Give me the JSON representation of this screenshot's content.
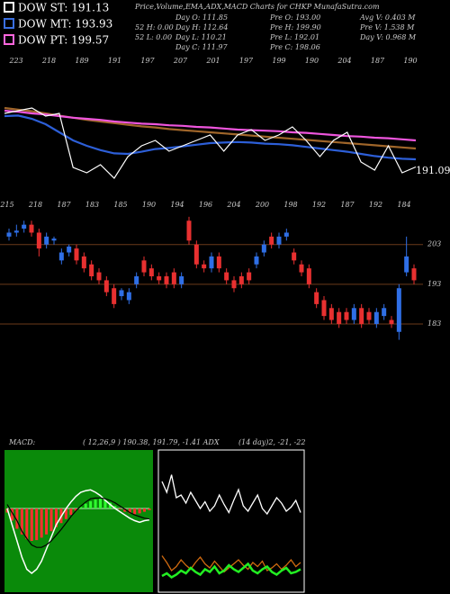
{
  "title": "Price,Volume,EMA,ADX,MACD Charts for CHKP MunafaSutra.com",
  "legend": [
    "DOW ST: 191.13",
    "DOW MT: 193.93",
    "DOW PT: 199.57"
  ],
  "legend_colors": [
    "#ffffff",
    "#3a6fe0",
    "#ff66dd"
  ],
  "stats": [
    [
      "52  H: 0.00",
      "52  L: 0.00"
    ],
    [
      "Day O: 111.85",
      "Day H: 112.64",
      "Day L: 110.21",
      "Day C: 111.97"
    ],
    [
      "Pre  O: 193.00",
      "Pre  H: 199.90",
      "Pre  L: 192.01",
      "Pre  C: 198.06"
    ],
    [
      "Avg V: 0.403 M",
      "Pre  V: 1.538 M",
      "Day V: 0.968 M"
    ]
  ],
  "indicator_labels": [
    "MACD:",
    "( 12,26,9 ) 190.38, 191.79, -1.41 ADX",
    "(14 day)2, -21, -22"
  ],
  "chart_data": [
    {
      "type": "line",
      "ylim": [
        187,
        212
      ],
      "last_label": "191.09",
      "top_labels": [
        "223",
        "218",
        "189",
        "191",
        "197",
        "207",
        "201",
        "197",
        "199",
        "190",
        "204",
        "187",
        "190"
      ],
      "series": [
        {
          "name": "DOW ST: 191.13",
          "color": "#ffffff",
          "values": [
            201,
            201.5,
            202,
            200.5,
            201,
            191,
            190,
            191.5,
            189,
            193,
            195,
            196,
            194,
            195,
            196,
            197,
            194,
            197,
            198,
            196,
            197,
            198.5,
            196,
            193,
            196,
            197.5,
            192,
            190.5,
            195,
            190,
            191.09
          ]
        },
        {
          "name": "DOW MT: 193.93",
          "color": "#2d5fd8",
          "values": [
            200.5,
            200.6,
            200,
            199,
            197.5,
            196,
            195,
            194.2,
            193.6,
            193.5,
            193.9,
            194.4,
            194.6,
            194.9,
            195.2,
            195.5,
            195.6,
            195.7,
            195.6,
            195.4,
            195.3,
            195.1,
            194.8,
            194.5,
            194.2,
            193.9,
            193.5,
            193.1,
            192.8,
            192.6,
            192.5
          ]
        },
        {
          "name": "DOW PT: 199.57",
          "color": "#ee55dd",
          "values": [
            201.5,
            201.3,
            201,
            200.8,
            200.5,
            200.2,
            200,
            199.8,
            199.5,
            199.3,
            199.1,
            199,
            198.8,
            198.7,
            198.5,
            198.4,
            198.2,
            198,
            197.9,
            197.8,
            197.7,
            197.5,
            197.4,
            197.2,
            197,
            196.8,
            196.7,
            196.5,
            196.4,
            196.2,
            196
          ]
        },
        {
          "color": "#a0662a",
          "values": [
            202,
            201.7,
            201.4,
            201,
            200.6,
            200.2,
            199.8,
            199.5,
            199.2,
            198.9,
            198.6,
            198.4,
            198.1,
            197.9,
            197.7,
            197.5,
            197.3,
            197.1,
            196.9,
            196.7,
            196.5,
            196.3,
            196.1,
            195.9,
            195.7,
            195.5,
            195.3,
            195.1,
            194.9,
            194.7,
            194.5
          ]
        }
      ]
    },
    {
      "type": "candlestick",
      "ylim": [
        178,
        212
      ],
      "yticks": [
        183,
        193,
        203
      ],
      "top_labels": [
        "215",
        "218",
        "187",
        "183",
        "185",
        "190",
        "194",
        "196",
        "204",
        "200",
        "198",
        "192",
        "187",
        "192",
        "184"
      ],
      "up_color": "#2f6fe6",
      "down_color": "#e83030",
      "line_color": "#6b3a1a",
      "open": [
        205,
        206,
        207,
        208,
        206,
        203,
        204,
        199,
        201,
        202,
        200,
        198,
        196,
        194,
        192,
        190,
        189,
        193,
        199,
        197,
        195,
        195,
        196,
        193,
        209,
        203,
        198,
        197,
        200,
        196,
        194,
        195,
        196,
        198,
        201,
        205,
        203,
        205,
        201,
        198,
        197,
        191,
        189,
        187,
        186,
        186,
        184,
        187,
        186,
        183,
        185,
        184,
        181,
        196,
        197
      ],
      "close": [
        206,
        206.5,
        208,
        206,
        202,
        205,
        204.5,
        201,
        202.5,
        199,
        197,
        195,
        194,
        191,
        188,
        191.5,
        191,
        195,
        196,
        195,
        194,
        193,
        193,
        195,
        204,
        198,
        197,
        200,
        197,
        194,
        192,
        193,
        194,
        200,
        203,
        203,
        205,
        206,
        199,
        196,
        193,
        188,
        185,
        184,
        183,
        184,
        187,
        183,
        184,
        186,
        187,
        183,
        192,
        200,
        194
      ],
      "high": [
        207,
        208,
        209,
        209,
        207,
        206,
        205,
        202,
        203,
        203,
        201,
        199,
        197,
        195,
        193,
        192,
        192,
        196,
        200,
        198,
        196,
        196,
        197,
        196,
        210,
        204,
        199,
        201,
        201,
        197,
        195,
        196,
        197,
        201,
        204,
        206,
        206,
        207,
        202,
        199,
        198,
        192,
        190,
        188,
        187,
        187,
        188,
        188,
        187,
        187,
        188,
        185,
        193,
        205,
        198
      ],
      "low": [
        204,
        205,
        206,
        205,
        200,
        202,
        203,
        198,
        200,
        198,
        196,
        194,
        193,
        190,
        187,
        189,
        188,
        192,
        195,
        194,
        193,
        192,
        192,
        192,
        203,
        197,
        196,
        196,
        196,
        193,
        191,
        192,
        193,
        197,
        200,
        202,
        202,
        204,
        198,
        195,
        192,
        187,
        184,
        183,
        182,
        183,
        183,
        182,
        183,
        182,
        184,
        182,
        179,
        195,
        193
      ]
    },
    {
      "type": "macd",
      "ylim": [
        -10,
        7
      ],
      "background": "#0a8a0a",
      "histogram": [
        -0.5,
        -1.5,
        -2.5,
        -3.2,
        -3.8,
        -4,
        -3.9,
        -3.6,
        -3.2,
        -2.8,
        -2.3,
        -1.8,
        -1.3,
        -0.8,
        -0.3,
        0.2,
        0.6,
        0.9,
        1.1,
        1.2,
        1,
        0.7,
        0.3,
        -0.1,
        -0.4,
        -0.6,
        -0.7,
        -0.6,
        -0.4,
        -0.2
      ],
      "macd": [
        0,
        -2,
        -4,
        -6,
        -7.5,
        -8,
        -7.5,
        -6.5,
        -5,
        -3.5,
        -2,
        -1,
        0,
        0.8,
        1.5,
        2,
        2.2,
        2.3,
        2,
        1.6,
        1,
        0.5,
        0,
        -0.4,
        -0.8,
        -1.2,
        -1.5,
        -1.7,
        -1.5,
        -1.4
      ],
      "signal": [
        0.5,
        -0.5,
        -1.5,
        -2.8,
        -3.7,
        -4.5,
        -4.8,
        -4.8,
        -4.5,
        -4,
        -3.3,
        -2.6,
        -1.8,
        -1,
        -0.3,
        0.3,
        0.8,
        1.2,
        1.3,
        1.3,
        1.2,
        1,
        0.7,
        0.3,
        -0.1,
        -0.5,
        -0.8,
        -1,
        -1.2,
        -1.3
      ]
    },
    {
      "type": "adx",
      "ylim": [
        0,
        100
      ],
      "series": [
        {
          "color": "#ffffff",
          "values": [
            80,
            72,
            85,
            68,
            70,
            64,
            72,
            66,
            60,
            65,
            58,
            62,
            70,
            63,
            57,
            66,
            74,
            62,
            58,
            64,
            70,
            60,
            56,
            62,
            68,
            64,
            58,
            61,
            66,
            57
          ]
        },
        {
          "color": "#d06a10",
          "values": [
            25,
            20,
            14,
            17,
            22,
            18,
            15,
            20,
            24,
            19,
            16,
            21,
            17,
            13,
            16,
            19,
            22,
            18,
            15,
            20,
            17,
            21,
            14,
            16,
            19,
            15,
            18,
            22,
            17,
            20
          ]
        },
        {
          "color": "#22ee22",
          "values": [
            10,
            12,
            9,
            11,
            14,
            12,
            16,
            13,
            11,
            15,
            13,
            17,
            12,
            14,
            18,
            15,
            13,
            16,
            19,
            14,
            12,
            15,
            17,
            13,
            11,
            14,
            16,
            12,
            13,
            15
          ]
        }
      ]
    }
  ]
}
